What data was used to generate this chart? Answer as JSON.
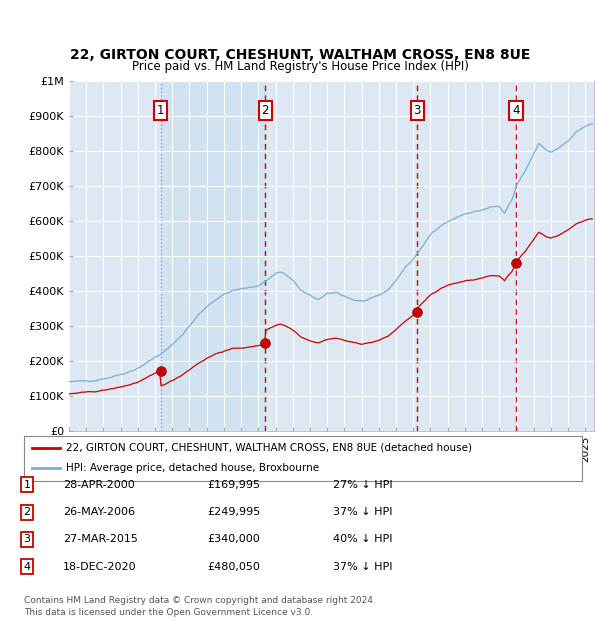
{
  "title": "22, GIRTON COURT, CHESHUNT, WALTHAM CROSS, EN8 8UE",
  "subtitle": "Price paid vs. HM Land Registry's House Price Index (HPI)",
  "background_color": "#ffffff",
  "plot_bg_color": "#dde8f4",
  "grid_color": "#ffffff",
  "red_line_color": "#cc0000",
  "blue_line_color": "#7aaed6",
  "sale_marker_color": "#cc0000",
  "vline_color_dashed": "#cc0000",
  "vline_color_dotted": "#aaaacc",
  "sales": [
    {
      "num": 1,
      "year": 2000.32,
      "price": 169995,
      "label": "1",
      "vline_style": "dotted"
    },
    {
      "num": 2,
      "year": 2006.4,
      "price": 249995,
      "label": "2",
      "vline_style": "dashed"
    },
    {
      "num": 3,
      "year": 2015.23,
      "price": 340000,
      "label": "3",
      "vline_style": "dashed"
    },
    {
      "num": 4,
      "year": 2020.96,
      "price": 480050,
      "label": "4",
      "vline_style": "dashed"
    }
  ],
  "table_rows": [
    {
      "num": "1",
      "date": "28-APR-2000",
      "price": "£169,995",
      "pct": "27% ↓ HPI"
    },
    {
      "num": "2",
      "date": "26-MAY-2006",
      "price": "£249,995",
      "pct": "37% ↓ HPI"
    },
    {
      "num": "3",
      "date": "27-MAR-2015",
      "price": "£340,000",
      "pct": "40% ↓ HPI"
    },
    {
      "num": "4",
      "date": "18-DEC-2020",
      "price": "£480,050",
      "pct": "37% ↓ HPI"
    }
  ],
  "legend_red": "22, GIRTON COURT, CHESHUNT, WALTHAM CROSS, EN8 8UE (detached house)",
  "legend_blue": "HPI: Average price, detached house, Broxbourne",
  "footer": "Contains HM Land Registry data © Crown copyright and database right 2024.\nThis data is licensed under the Open Government Licence v3.0.",
  "ylim": [
    0,
    1000000
  ],
  "xlim_start": 1995.0,
  "xlim_end": 2025.5,
  "yticks": [
    0,
    100000,
    200000,
    300000,
    400000,
    500000,
    600000,
    700000,
    800000,
    900000,
    1000000
  ],
  "ytick_labels": [
    "£0",
    "£100K",
    "£200K",
    "£300K",
    "£400K",
    "£500K",
    "£600K",
    "£700K",
    "£800K",
    "£900K",
    "£1M"
  ]
}
